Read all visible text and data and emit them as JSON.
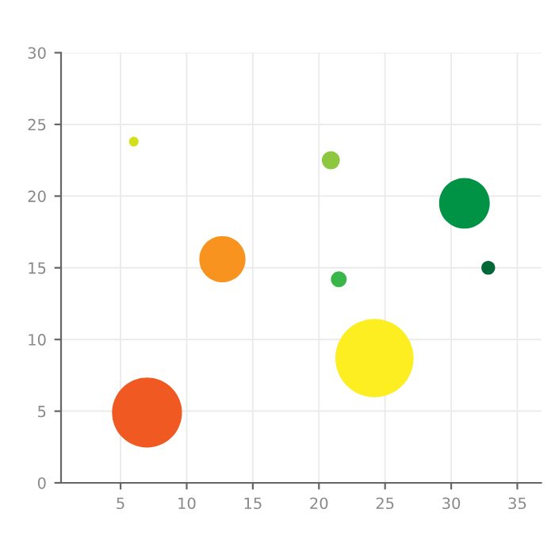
{
  "chart_data": {
    "type": "bubble",
    "x": [
      7.0,
      6.0,
      12.7,
      20.9,
      21.5,
      24.2,
      31.0,
      32.8
    ],
    "values": [
      4.9,
      23.8,
      15.6,
      22.5,
      14.2,
      8.7,
      19.5,
      15.0
    ],
    "sizes": [
      0.8,
      0.015,
      0.35,
      0.053,
      0.041,
      1,
      0.42,
      0.031
    ],
    "colors": [
      "#f05a22",
      "#d4e017",
      "#f7931e",
      "#8dc63f",
      "#39b54a",
      "#fcee21",
      "#009245",
      "#006837"
    ],
    "xlim": [
      0.5,
      36.8
    ],
    "xticks": [
      5,
      10,
      15,
      20,
      25,
      30,
      35
    ],
    "ylim": [
      0,
      30
    ],
    "yticks": [
      0,
      5,
      10,
      15,
      20,
      25,
      30
    ],
    "grid": true
  }
}
